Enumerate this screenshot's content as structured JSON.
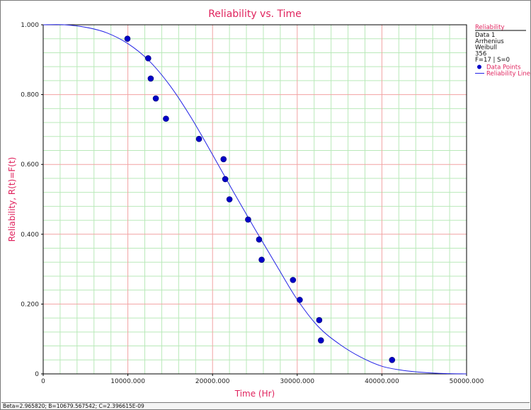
{
  "chart_data": {
    "type": "scatter",
    "title": "Reliability vs. Time",
    "xlabel": "Time (Hr)",
    "ylabel": "Reliability, R(t)=F(t)",
    "xlim": [
      0,
      50000
    ],
    "ylim": [
      0,
      1
    ],
    "x_ticks": [
      {
        "value": 0,
        "label": "0"
      },
      {
        "value": 10000,
        "label": "10000.000"
      },
      {
        "value": 20000,
        "label": "20000.000"
      },
      {
        "value": 30000,
        "label": "30000.000"
      },
      {
        "value": 40000,
        "label": "40000.000"
      },
      {
        "value": 50000,
        "label": "50000.000"
      }
    ],
    "y_ticks": [
      {
        "value": 0,
        "label": "0"
      },
      {
        "value": 0.2,
        "label": "0.200"
      },
      {
        "value": 0.4,
        "label": "0.400"
      },
      {
        "value": 0.6,
        "label": "0.600"
      },
      {
        "value": 0.8,
        "label": "0.800"
      },
      {
        "value": 1.0,
        "label": "1.000"
      }
    ],
    "grid": true,
    "legend": {
      "position": "right",
      "heading": "Reliability",
      "lines": [
        "Data 1",
        "Arrhenius",
        "Weibull",
        "356",
        "F=17 | S=0"
      ],
      "entries": [
        {
          "label": "Data Points",
          "marker": "dot",
          "color": "#0000c8"
        },
        {
          "label": "Reliability Line",
          "marker": "line",
          "color": "#2323e6"
        }
      ]
    },
    "series": [
      {
        "name": "Data Points",
        "color": "#0000c8",
        "points": [
          {
            "x": 9950,
            "y": 0.96
          },
          {
            "x": 12400,
            "y": 0.904
          },
          {
            "x": 12700,
            "y": 0.846
          },
          {
            "x": 13300,
            "y": 0.789
          },
          {
            "x": 14500,
            "y": 0.731
          },
          {
            "x": 18400,
            "y": 0.673
          },
          {
            "x": 21300,
            "y": 0.615
          },
          {
            "x": 21500,
            "y": 0.558
          },
          {
            "x": 22000,
            "y": 0.5
          },
          {
            "x": 24200,
            "y": 0.442
          },
          {
            "x": 25500,
            "y": 0.385
          },
          {
            "x": 25800,
            "y": 0.327
          },
          {
            "x": 29500,
            "y": 0.269
          },
          {
            "x": 30300,
            "y": 0.212
          },
          {
            "x": 32600,
            "y": 0.154
          },
          {
            "x": 32800,
            "y": 0.096
          },
          {
            "x": 41200,
            "y": 0.04
          }
        ]
      },
      {
        "name": "Reliability Line",
        "color": "#2323e6",
        "points": [
          {
            "x": 0,
            "y": 1.0
          },
          {
            "x": 2500,
            "y": 1.0
          },
          {
            "x": 5000,
            "y": 0.993
          },
          {
            "x": 7500,
            "y": 0.977
          },
          {
            "x": 10000,
            "y": 0.946
          },
          {
            "x": 12500,
            "y": 0.897
          },
          {
            "x": 15000,
            "y": 0.825
          },
          {
            "x": 17500,
            "y": 0.733
          },
          {
            "x": 20000,
            "y": 0.628
          },
          {
            "x": 22500,
            "y": 0.52
          },
          {
            "x": 25000,
            "y": 0.415
          },
          {
            "x": 27500,
            "y": 0.313
          },
          {
            "x": 30000,
            "y": 0.213
          },
          {
            "x": 32500,
            "y": 0.135
          },
          {
            "x": 35000,
            "y": 0.085
          },
          {
            "x": 37500,
            "y": 0.048
          },
          {
            "x": 40000,
            "y": 0.022
          },
          {
            "x": 42500,
            "y": 0.01
          },
          {
            "x": 45000,
            "y": 0.004
          },
          {
            "x": 47500,
            "y": 0.001
          },
          {
            "x": 50000,
            "y": 0.0
          }
        ]
      }
    ]
  },
  "status": {
    "text": "Beta=2.965820; B=10679.567542; C=2.396615E-09"
  }
}
